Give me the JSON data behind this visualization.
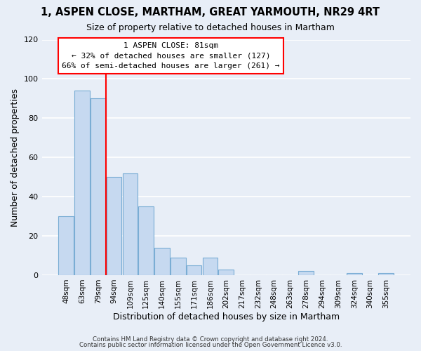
{
  "title": "1, ASPEN CLOSE, MARTHAM, GREAT YARMOUTH, NR29 4RT",
  "subtitle": "Size of property relative to detached houses in Martham",
  "xlabel": "Distribution of detached houses by size in Martham",
  "ylabel": "Number of detached properties",
  "categories": [
    "48sqm",
    "63sqm",
    "79sqm",
    "94sqm",
    "109sqm",
    "125sqm",
    "140sqm",
    "155sqm",
    "171sqm",
    "186sqm",
    "202sqm",
    "217sqm",
    "232sqm",
    "248sqm",
    "263sqm",
    "278sqm",
    "294sqm",
    "309sqm",
    "324sqm",
    "340sqm",
    "355sqm"
  ],
  "values": [
    30,
    94,
    90,
    50,
    52,
    35,
    14,
    9,
    5,
    9,
    3,
    0,
    0,
    0,
    0,
    2,
    0,
    0,
    1,
    0,
    1
  ],
  "bar_color": "#c6d9f0",
  "bar_edgecolor": "#7aadd4",
  "red_line_index": 2,
  "ylim": [
    0,
    120
  ],
  "yticks": [
    0,
    20,
    40,
    60,
    80,
    100,
    120
  ],
  "annotation_title": "1 ASPEN CLOSE: 81sqm",
  "annotation_line1": "← 32% of detached houses are smaller (127)",
  "annotation_line2": "66% of semi-detached houses are larger (261) →",
  "footer_line1": "Contains HM Land Registry data © Crown copyright and database right 2024.",
  "footer_line2": "Contains public sector information licensed under the Open Government Licence v3.0.",
  "background_color": "#e8eef7",
  "plot_background_color": "#e8eef7",
  "grid_color": "#ffffff",
  "title_fontsize": 10.5,
  "subtitle_fontsize": 9
}
